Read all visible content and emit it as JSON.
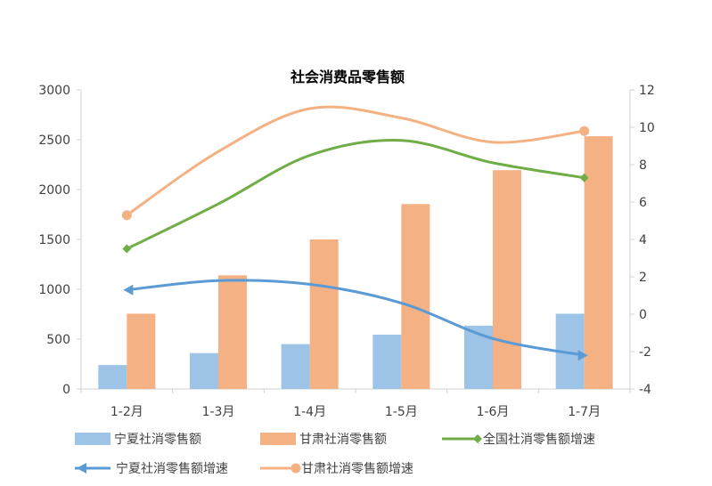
{
  "chart_data": {
    "type": "bar",
    "title": "社会消费品零售额",
    "categories": [
      "1-2月",
      "1-3月",
      "1-4月",
      "1-5月",
      "1-6月",
      "1-7月"
    ],
    "ylim": [
      0,
      3000
    ],
    "y_ticks": [
      "3000",
      "2500",
      "2000",
      "1500",
      "1000",
      "500",
      "0"
    ],
    "y2lim": [
      -4,
      12
    ],
    "y2_ticks": [
      "12",
      "10",
      "8",
      "6",
      "4",
      "2",
      "0",
      "-2",
      "-4"
    ],
    "grid": false,
    "legend_position": "bottom",
    "series": [
      {
        "name": "宁夏社消零售额",
        "kind": "bar",
        "axis": "left",
        "color": "#9dc3e6",
        "values": [
          240,
          360,
          450,
          545,
          635,
          755
        ]
      },
      {
        "name": "甘肃社消零售额",
        "kind": "bar",
        "axis": "left",
        "color": "#f4b183",
        "values": [
          755,
          1140,
          1500,
          1855,
          2195,
          2535
        ]
      },
      {
        "name": "全国社消零售额增速",
        "kind": "line",
        "axis": "right",
        "color": "#70ad47",
        "marker": "diamond",
        "values": [
          3.5,
          5.9,
          8.5,
          9.3,
          8.1,
          7.3
        ]
      },
      {
        "name": "宁夏社消零售额增速",
        "kind": "line",
        "axis": "right",
        "color": "#5b9bd5",
        "marker": "arrow",
        "values": [
          1.3,
          1.8,
          1.6,
          0.6,
          -1.3,
          -2.2
        ]
      },
      {
        "name": "甘肃社消零售额增速",
        "kind": "line",
        "axis": "right",
        "color": "#f4b183",
        "marker": "circle",
        "values": [
          5.3,
          8.7,
          11.0,
          10.5,
          9.2,
          9.8
        ]
      }
    ]
  }
}
